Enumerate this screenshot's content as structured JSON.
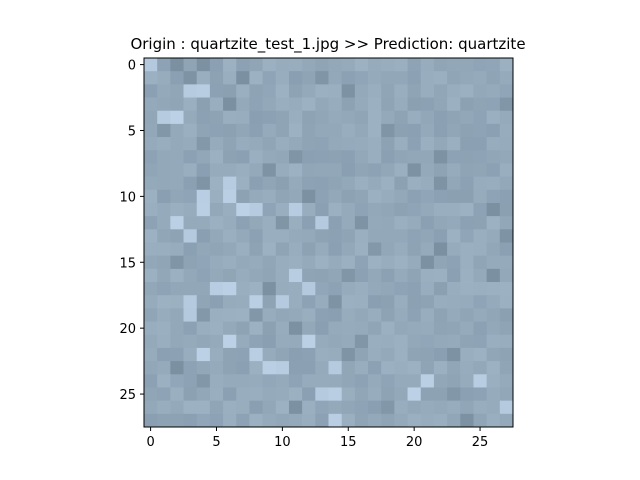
{
  "chart_data": {
    "type": "heatmap",
    "title": "Origin : quartzite_test_1.jpg >> Prediction: quartzite",
    "xlabel": "",
    "ylabel": "",
    "xlim": [
      -0.5,
      27.5
    ],
    "ylim": [
      27.5,
      -0.5
    ],
    "x_ticks": [
      0,
      5,
      10,
      15,
      20,
      25
    ],
    "y_ticks": [
      0,
      5,
      10,
      15,
      20,
      25
    ],
    "grid": false,
    "image": {
      "width": 28,
      "height": 28,
      "base_color": "#93a9ba",
      "light_color": "#b8cde2",
      "dark_color": "#7f94a4",
      "light_cells": [
        [
          0,
          0
        ],
        [
          2,
          3
        ],
        [
          2,
          4
        ],
        [
          4,
          1
        ],
        [
          4,
          2
        ],
        [
          9,
          6
        ],
        [
          10,
          4
        ],
        [
          10,
          6
        ],
        [
          11,
          7
        ],
        [
          11,
          8
        ],
        [
          11,
          11
        ],
        [
          11,
          4
        ],
        [
          12,
          13
        ],
        [
          12,
          2
        ],
        [
          13,
          3
        ],
        [
          16,
          11
        ],
        [
          17,
          5
        ],
        [
          17,
          6
        ],
        [
          17,
          12
        ],
        [
          18,
          8
        ],
        [
          18,
          10
        ],
        [
          18,
          3
        ],
        [
          19,
          3
        ],
        [
          21,
          6
        ],
        [
          21,
          12
        ],
        [
          22,
          4
        ],
        [
          22,
          8
        ],
        [
          23,
          9
        ],
        [
          23,
          14
        ],
        [
          23,
          10
        ],
        [
          24,
          21
        ],
        [
          24,
          25
        ],
        [
          25,
          13
        ],
        [
          25,
          14
        ],
        [
          25,
          20
        ],
        [
          26,
          27
        ],
        [
          27,
          14
        ]
      ],
      "dark_cells": [
        [
          0,
          4
        ],
        [
          0,
          2
        ],
        [
          1,
          3
        ],
        [
          1,
          7
        ],
        [
          1,
          13
        ],
        [
          2,
          15
        ],
        [
          3,
          6
        ],
        [
          3,
          27
        ],
        [
          5,
          1
        ],
        [
          5,
          18
        ],
        [
          6,
          4
        ],
        [
          7,
          22
        ],
        [
          7,
          11
        ],
        [
          8,
          20
        ],
        [
          8,
          9
        ],
        [
          9,
          22
        ],
        [
          9,
          4
        ],
        [
          10,
          12
        ],
        [
          11,
          26
        ],
        [
          12,
          16
        ],
        [
          12,
          10
        ],
        [
          13,
          27
        ],
        [
          14,
          17
        ],
        [
          14,
          22
        ],
        [
          15,
          2
        ],
        [
          15,
          21
        ],
        [
          16,
          15
        ],
        [
          16,
          26
        ],
        [
          17,
          9
        ],
        [
          18,
          14
        ],
        [
          19,
          8
        ],
        [
          19,
          4
        ],
        [
          20,
          11
        ],
        [
          21,
          16
        ],
        [
          22,
          23
        ],
        [
          22,
          15
        ],
        [
          23,
          2
        ],
        [
          24,
          4
        ],
        [
          25,
          23
        ],
        [
          26,
          11
        ],
        [
          26,
          18
        ],
        [
          27,
          24
        ]
      ]
    }
  }
}
